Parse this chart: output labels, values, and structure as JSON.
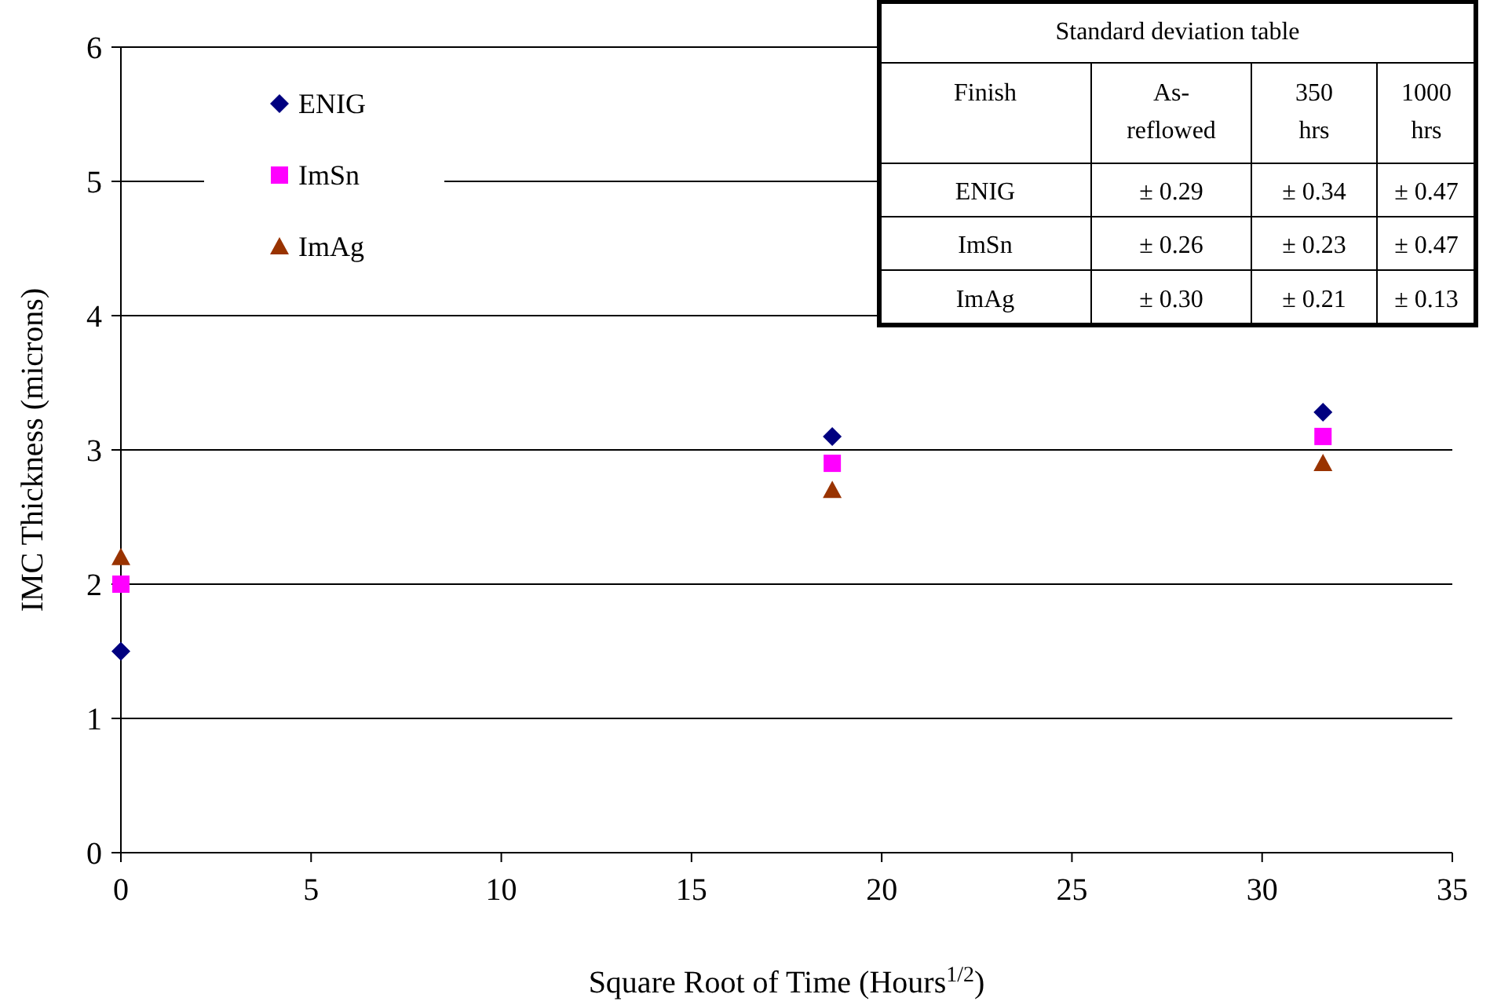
{
  "chart_data": {
    "type": "scatter",
    "xlabel": "Square Root of Time (Hours$^{1/2}$)",
    "ylabel": "IMC Thickness (microns)",
    "xlim": [
      0,
      35
    ],
    "xticks": [
      0,
      5,
      10,
      15,
      20,
      25,
      30,
      35
    ],
    "ylim": [
      0,
      6
    ],
    "yticks": [
      0,
      1,
      2,
      3,
      4,
      5,
      6
    ],
    "grid": "y",
    "legend": "top left",
    "series": [
      {
        "name": "ENIG",
        "color": "#000080",
        "marker": "diamond",
        "x": [
          0,
          18.7,
          31.6
        ],
        "values": [
          1.5,
          3.1,
          3.28
        ]
      },
      {
        "name": "ImSn",
        "color": "#ff00ff",
        "marker": "square",
        "x": [
          0,
          18.7,
          31.6
        ],
        "values": [
          2.0,
          2.9,
          3.1
        ]
      },
      {
        "name": "ImAg",
        "color": "#993300",
        "marker": "triangle",
        "x": [
          0,
          18.7,
          31.6
        ],
        "values": [
          2.2,
          2.7,
          2.9
        ]
      }
    ],
    "annotations": [
      "Standard deviation table",
      "Finish",
      "As-reflowed",
      "350 hrs",
      "1000 hrs",
      "ENIG",
      "± 0.29",
      "± 0.34",
      "± 0.47",
      "ImSn",
      "± 0.26",
      "± 0.23",
      "± 0.47",
      "ImAg",
      "± 0.30",
      "± 0.21",
      "± 0.13"
    ]
  }
}
